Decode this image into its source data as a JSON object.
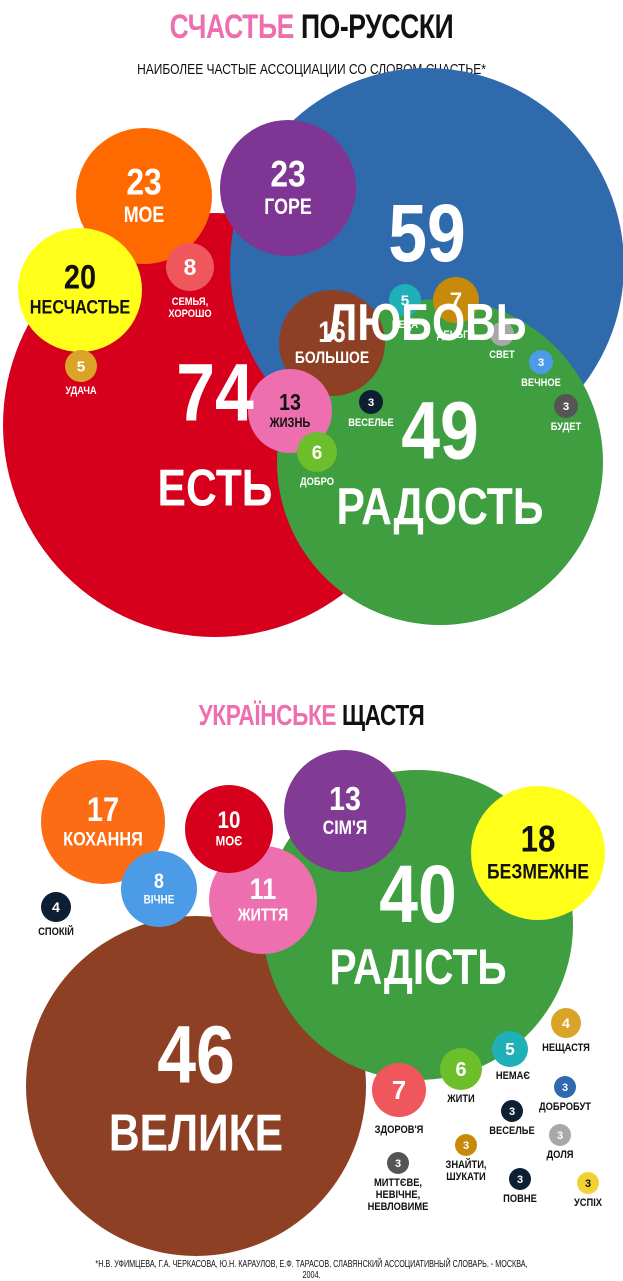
{
  "ru": {
    "title_highlight": "СЧАСТЬЕ",
    "title_rest": "ПО-РУССКИ",
    "subtitle": "НАИБОЛЕЕ ЧАСТЫЕ АССОЦИАЦИИ СО СЛОВОМ СЧАСТЬЕ*"
  },
  "ua": {
    "title_highlight": "УКРАЇНСЬКЕ",
    "title_rest": "ЩАСТЯ"
  },
  "footnote": "*Н.В. УФИМЦЕВА, Г.А. ЧЕРКАСОВА, Ю.Н. КАРАУЛОВ, Е.Ф. ТАРАСОВ, СЛАВЯНСКИЙ АССОЦИАТИВНЫЙ СЛОВАРЬ. - МОСКВА, 2004.",
  "colors": {
    "red": "#d6001c",
    "blue": "#2f6aad",
    "green": "#3f9e3f",
    "orange": "#ff6a00",
    "purple": "#7f3594",
    "yellow": "#ffff1a",
    "salmon": "#f0575d",
    "brown": "#8e4024",
    "pink": "#ee6fb0",
    "lime": "#6cbf2a",
    "teal": "#1fb0b8",
    "gold": "#c88a0a",
    "grey": "#a8a8a8",
    "lightblue": "#4b9be6",
    "navy": "#0e1f33",
    "yellowsmall": "#f2d232",
    "mustard": "#d9a427",
    "ua_orange": "#fc6c14",
    "ua_red": "#d6001c",
    "ua_purple": "#813b95",
    "ua_green": "#3f9e3f",
    "ua_yellow": "#ffff1a",
    "ua_blue": "#4b9be6",
    "ua_pink": "#ee6fb0",
    "ua_brown": "#8e4024",
    "ua_salmon": "#f0575d",
    "ua_lime": "#6cbf2a",
    "ua_teal": "#1fb0b8",
    "ua_gold": "#c88a0a",
    "ua_grey": "#a8a8a8",
    "ua_navy": "#0e1f33",
    "ua_mustard": "#d9a427",
    "ua_yellowsmall": "#f2d232"
  },
  "chart_data": [
    {
      "type": "bubble",
      "items": [
        {
          "word": "ЕСТЬ",
          "value": 74,
          "color": "#d6001c",
          "label": "inside"
        },
        {
          "word": "ЛЮБОВЬ",
          "value": 59,
          "color": "#2f6aad",
          "label": "inside"
        },
        {
          "word": "РАДОСТЬ",
          "value": 49,
          "color": "#3f9e3f",
          "label": "inside"
        },
        {
          "word": "МОЕ",
          "value": 23,
          "color": "#ff6a00",
          "label": "inside"
        },
        {
          "word": "ГОРЕ",
          "value": 23,
          "color": "#7f3594",
          "label": "inside"
        },
        {
          "word": "НЕСЧАСТЬЕ",
          "value": 20,
          "color": "#ffff1a",
          "label": "inside",
          "dark": true
        },
        {
          "word": "БОЛЬШОЕ",
          "value": 16,
          "color": "#8e4024",
          "label": "inside"
        },
        {
          "word": "ЖИЗНЬ",
          "value": 13,
          "color": "#ee6fb0",
          "label": "inside",
          "dark": true
        },
        {
          "word": "СЕМЬЯ, ХОРОШО",
          "value": 8,
          "color": "#f0575d",
          "label": "below"
        },
        {
          "word": "ДЕНЬГИ",
          "value": 7,
          "color": "#c88a0a",
          "label": "below"
        },
        {
          "word": "ДОБРО",
          "value": 6,
          "color": "#6cbf2a",
          "label": "below"
        },
        {
          "word": "БЕДА",
          "value": 5,
          "color": "#1fb0b8",
          "label": "below"
        },
        {
          "word": "УДАЧА",
          "value": 5,
          "color": "#d9a427",
          "label": "below"
        },
        {
          "word": "СВЕТ",
          "value": 3,
          "color": "#a8a8a8",
          "label": "below"
        },
        {
          "word": "ВЕЧНОЕ",
          "value": 3,
          "color": "#4b9be6",
          "label": "below"
        },
        {
          "word": "ВЕСЕЛЬЕ",
          "value": 3,
          "color": "#0e1f33",
          "label": "below"
        },
        {
          "word": "БУДЕТ",
          "value": 3,
          "color": "#555555",
          "label": "below"
        }
      ]
    },
    {
      "type": "bubble",
      "items": [
        {
          "word": "ВЕЛИКЕ",
          "value": 46,
          "color": "#8e4024",
          "label": "inside"
        },
        {
          "word": "РАДІСТЬ",
          "value": 40,
          "color": "#3f9e3f",
          "label": "inside"
        },
        {
          "word": "БЕЗМЕЖНЕ",
          "value": 18,
          "color": "#ffff1a",
          "label": "inside",
          "dark": true
        },
        {
          "word": "КОХАННЯ",
          "value": 17,
          "color": "#fc6c14",
          "label": "inside"
        },
        {
          "word": "СІМ'Я",
          "value": 13,
          "color": "#813b95",
          "label": "inside"
        },
        {
          "word": "ЖИТТЯ",
          "value": 11,
          "color": "#ee6fb0",
          "label": "inside"
        },
        {
          "word": "МОЄ",
          "value": 10,
          "color": "#d6001c",
          "label": "inside"
        },
        {
          "word": "ВІЧНЕ",
          "value": 8,
          "color": "#4b9be6",
          "label": "inside"
        },
        {
          "word": "ЗДОРОВ'Я",
          "value": 7,
          "color": "#f0575d",
          "label": "below"
        },
        {
          "word": "ЖИТИ",
          "value": 6,
          "color": "#6cbf2a",
          "label": "below"
        },
        {
          "word": "НЕМАЄ",
          "value": 5,
          "color": "#1fb0b8",
          "label": "below"
        },
        {
          "word": "СПОКІЙ",
          "value": 4,
          "color": "#0e1f33",
          "label": "below"
        },
        {
          "word": "НЕЩАСТЯ",
          "value": 4,
          "color": "#d9a427",
          "label": "below"
        },
        {
          "word": "ДОБРОБУТ",
          "value": 3,
          "color": "#2f6aad",
          "label": "below"
        },
        {
          "word": "ВЕСЕЛЬЕ",
          "value": 3,
          "color": "#0e1f33",
          "label": "below"
        },
        {
          "word": "ЗНАЙТИ, ШУКАТИ",
          "value": 3,
          "color": "#c88a0a",
          "label": "below"
        },
        {
          "word": "ДОЛЯ",
          "value": 3,
          "color": "#a8a8a8",
          "label": "below"
        },
        {
          "word": "МИТТЄВЕ, НЕВІЧНЕ, НЕВЛОВИМЕ",
          "value": 3,
          "color": "#555555",
          "label": "below"
        },
        {
          "word": "ПОВНЕ",
          "value": 3,
          "color": "#0e1f33",
          "label": "below"
        },
        {
          "word": "УСПІХ",
          "value": 3,
          "color": "#f2d232",
          "label": "below",
          "dark": true
        }
      ]
    }
  ]
}
